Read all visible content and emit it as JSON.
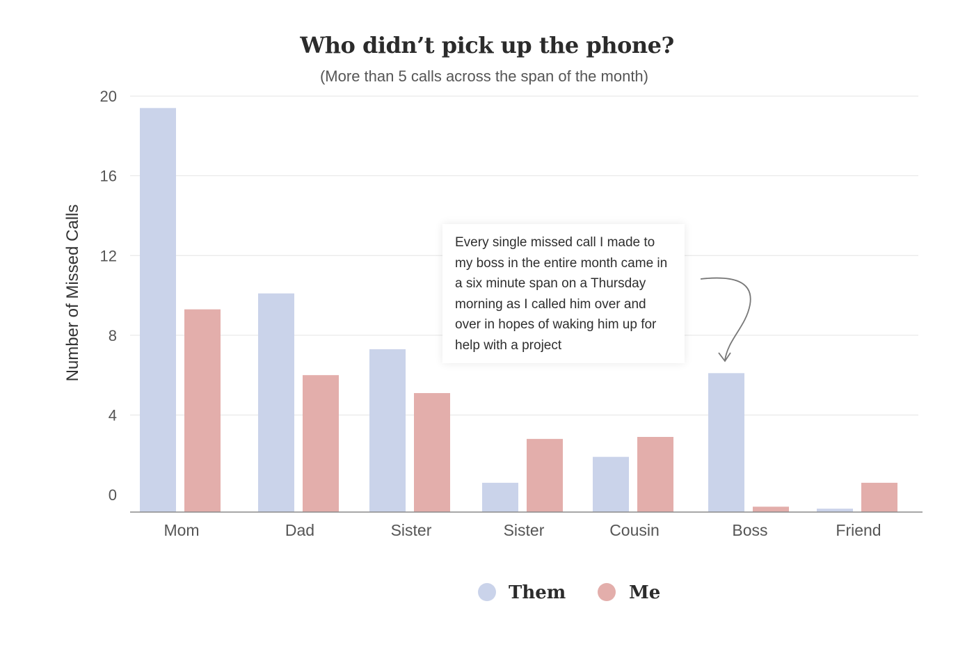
{
  "chart_data": {
    "type": "bar",
    "title": "Who didn’t pick up the phone?",
    "subtitle": "(More than 5 calls across the span of the month)",
    "xlabel": "",
    "ylabel": "Number of Missed Calls",
    "ylim": [
      -0.8,
      21
    ],
    "yticks": [
      "20",
      "16",
      "12",
      "8",
      "4",
      "0"
    ],
    "grid": true,
    "categories": [
      "Mom",
      "Dad",
      "Sister",
      "Sister",
      "Cousin",
      "Boss",
      "Friend"
    ],
    "series": [
      {
        "name": "Them",
        "color": "#cad3ea",
        "values": [
          19.4,
          10.1,
          7.3,
          0.6,
          1.9,
          6.1,
          -0.7
        ]
      },
      {
        "name": "Me",
        "color": "#e3aeab",
        "values": [
          9.3,
          6.0,
          5.1,
          2.8,
          2.9,
          -0.6,
          0.6
        ]
      }
    ],
    "legend": {
      "position": "bottom"
    },
    "annotation": {
      "text": "Every single missed call I made to my boss in the entire month came in a six minute span on a Thursday morning as I called him over and over in hopes of waking him up for help with a project",
      "target": "Boss"
    }
  }
}
